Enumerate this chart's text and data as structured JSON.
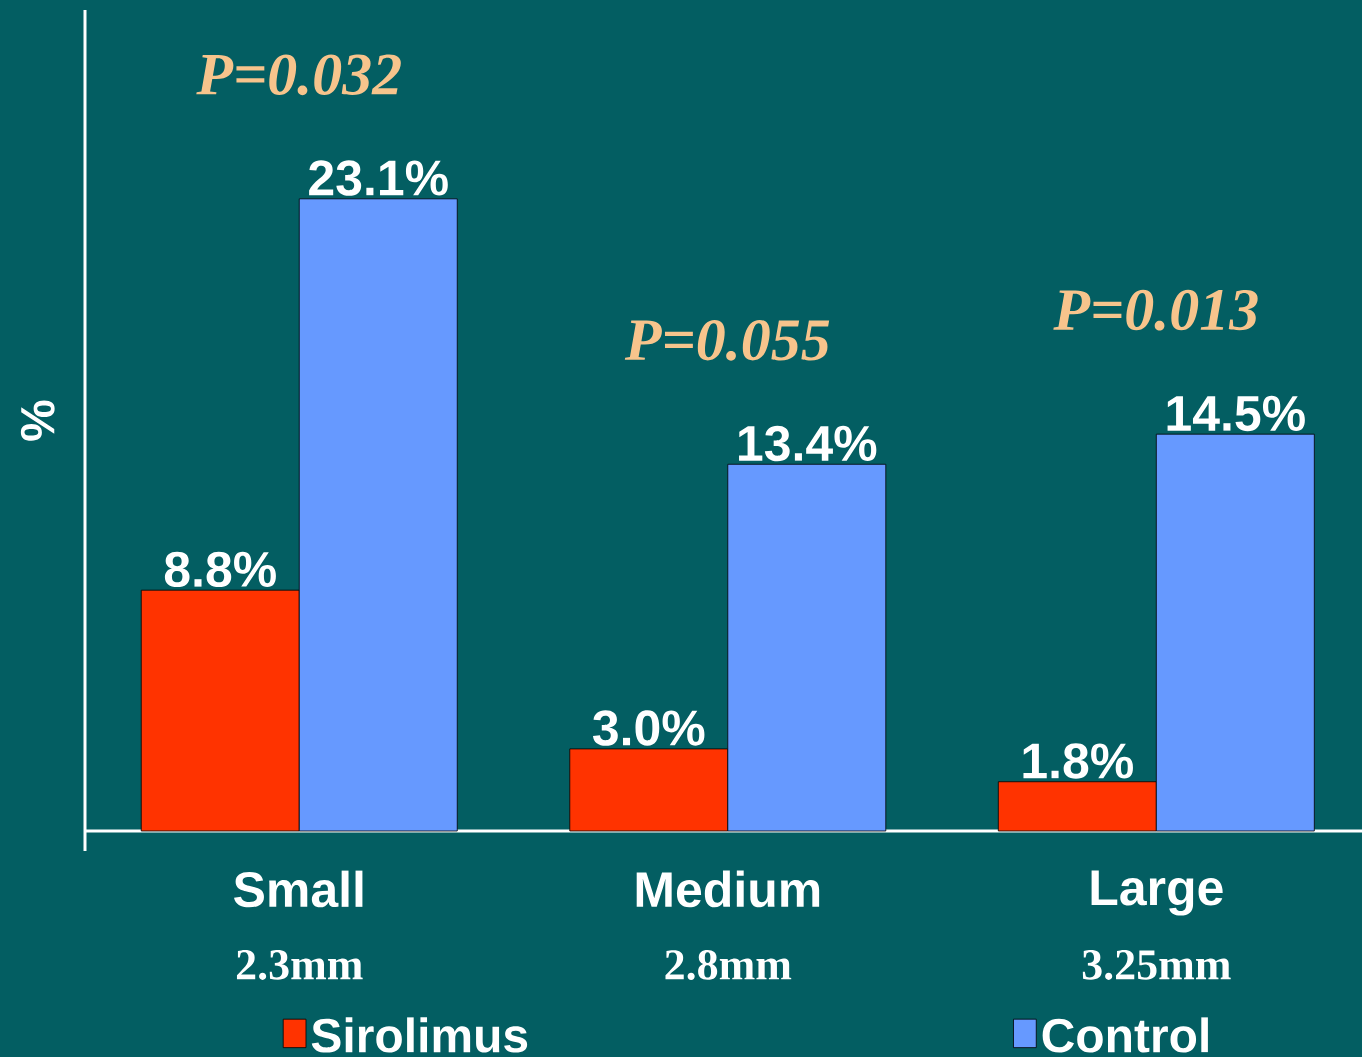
{
  "chart_data": {
    "type": "bar",
    "ylabel": "%",
    "categories": [
      "Small",
      "Medium",
      "Large"
    ],
    "ylim": [
      0,
      30
    ],
    "legend": "bottom",
    "series": [
      {
        "name": "Sirolimus",
        "color": "#ff3300",
        "values": [
          8.8,
          3.0,
          1.8
        ],
        "value_labels": [
          "8.8%",
          "3.0%",
          "1.8%"
        ]
      },
      {
        "name": "Control",
        "color": "#6699ff",
        "values": [
          23.1,
          13.4,
          14.5
        ],
        "value_labels": [
          "23.1%",
          "13.4%",
          "14.5%"
        ]
      }
    ],
    "annotations": [
      "P=0.032",
      "P=0.055",
      "P=0.013",
      "2.3mm",
      "2.8mm",
      "3.25mm"
    ]
  }
}
